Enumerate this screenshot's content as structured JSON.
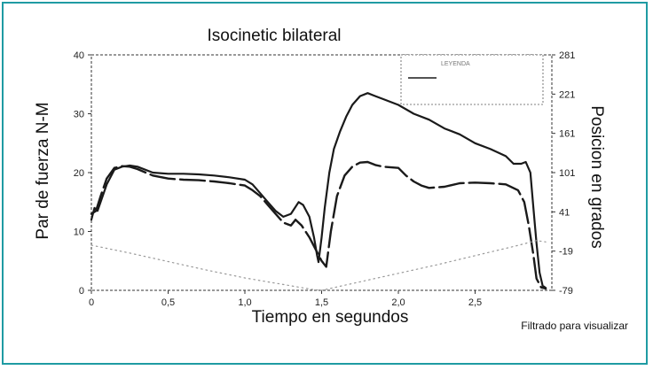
{
  "colors": {
    "frame": "#1f9ba3",
    "line": "#1a1a1a",
    "dotted": "#999999"
  },
  "chart_data": {
    "type": "line",
    "title": "Isocinetic bilateral",
    "xlabel": "Tiempo en segundos",
    "ylabel": "Par de fuerza N-M",
    "y2label": "Posicion en grados",
    "xlim": [
      0,
      3.0
    ],
    "ylim": [
      0,
      40
    ],
    "y2lim": [
      -79,
      281
    ],
    "xticks": [
      "0",
      "0,5",
      "1,0",
      "1,5",
      "2,0",
      "2,5"
    ],
    "yticks": [
      "40",
      "30",
      "20",
      "10",
      "0"
    ],
    "y2ticks": [
      "281",
      "221",
      "161",
      "101",
      "41",
      "-19",
      "-79"
    ],
    "legend": {
      "position": "top-right",
      "title": "LEYENDA",
      "entries": [
        "",
        ""
      ]
    },
    "note": "Filtrado para visualizar",
    "series": [
      {
        "style": "solid",
        "points": [
          [
            0.0,
            12
          ],
          [
            0.02,
            14
          ],
          [
            0.04,
            13.5
          ],
          [
            0.06,
            15
          ],
          [
            0.1,
            18
          ],
          [
            0.15,
            20.5
          ],
          [
            0.2,
            21
          ],
          [
            0.25,
            21.2
          ],
          [
            0.3,
            21
          ],
          [
            0.4,
            20
          ],
          [
            0.5,
            19.8
          ],
          [
            0.6,
            19.8
          ],
          [
            0.7,
            19.7
          ],
          [
            0.8,
            19.5
          ],
          [
            0.9,
            19.2
          ],
          [
            1.0,
            18.8
          ],
          [
            1.05,
            18
          ],
          [
            1.1,
            16.5
          ],
          [
            1.15,
            15
          ],
          [
            1.2,
            13.5
          ],
          [
            1.25,
            12.5
          ],
          [
            1.3,
            13
          ],
          [
            1.35,
            15
          ],
          [
            1.38,
            14.5
          ],
          [
            1.42,
            12.5
          ],
          [
            1.45,
            9
          ],
          [
            1.47,
            6
          ],
          [
            1.48,
            4.8
          ],
          [
            1.5,
            9
          ],
          [
            1.52,
            14
          ],
          [
            1.55,
            20
          ],
          [
            1.58,
            24
          ],
          [
            1.62,
            27
          ],
          [
            1.66,
            29.5
          ],
          [
            1.7,
            31.5
          ],
          [
            1.75,
            33
          ],
          [
            1.8,
            33.5
          ],
          [
            1.85,
            33
          ],
          [
            1.9,
            32.5
          ],
          [
            2.0,
            31.5
          ],
          [
            2.1,
            30
          ],
          [
            2.2,
            29
          ],
          [
            2.3,
            27.5
          ],
          [
            2.4,
            26.5
          ],
          [
            2.5,
            25
          ],
          [
            2.6,
            24
          ],
          [
            2.7,
            22.8
          ],
          [
            2.75,
            21.5
          ],
          [
            2.8,
            21.5
          ],
          [
            2.83,
            21.8
          ],
          [
            2.86,
            20
          ],
          [
            2.88,
            14
          ],
          [
            2.9,
            8
          ],
          [
            2.92,
            3
          ],
          [
            2.94,
            0.8
          ],
          [
            2.96,
            0.4
          ]
        ]
      },
      {
        "style": "dashed",
        "points": [
          [
            0.0,
            13
          ],
          [
            0.03,
            13.5
          ],
          [
            0.06,
            16
          ],
          [
            0.1,
            19
          ],
          [
            0.15,
            20.8
          ],
          [
            0.2,
            21.1
          ],
          [
            0.25,
            21
          ],
          [
            0.3,
            20.6
          ],
          [
            0.4,
            19.5
          ],
          [
            0.5,
            19
          ],
          [
            0.6,
            18.8
          ],
          [
            0.7,
            18.7
          ],
          [
            0.8,
            18.5
          ],
          [
            0.9,
            18.2
          ],
          [
            1.0,
            17.8
          ],
          [
            1.05,
            17
          ],
          [
            1.1,
            16
          ],
          [
            1.15,
            14.5
          ],
          [
            1.2,
            13
          ],
          [
            1.25,
            11.5
          ],
          [
            1.3,
            11
          ],
          [
            1.33,
            12
          ],
          [
            1.37,
            11
          ],
          [
            1.42,
            9
          ],
          [
            1.46,
            7
          ],
          [
            1.5,
            5
          ],
          [
            1.53,
            4
          ],
          [
            1.56,
            10
          ],
          [
            1.6,
            16
          ],
          [
            1.65,
            19.5
          ],
          [
            1.7,
            21
          ],
          [
            1.75,
            21.7
          ],
          [
            1.8,
            21.8
          ],
          [
            1.85,
            21.3
          ],
          [
            1.9,
            21
          ],
          [
            2.0,
            20.8
          ],
          [
            2.05,
            19.5
          ],
          [
            2.1,
            18.5
          ],
          [
            2.15,
            17.8
          ],
          [
            2.2,
            17.4
          ],
          [
            2.3,
            17.6
          ],
          [
            2.4,
            18.2
          ],
          [
            2.5,
            18.3
          ],
          [
            2.6,
            18.2
          ],
          [
            2.7,
            18
          ],
          [
            2.78,
            17
          ],
          [
            2.82,
            15
          ],
          [
            2.85,
            11
          ],
          [
            2.88,
            6
          ],
          [
            2.9,
            2
          ],
          [
            2.93,
            0.5
          ],
          [
            2.96,
            0.3
          ]
        ]
      },
      {
        "style": "dotted",
        "axis": "right",
        "points": [
          [
            0.0,
            -10
          ],
          [
            0.25,
            -22
          ],
          [
            0.5,
            -35
          ],
          [
            0.75,
            -48
          ],
          [
            1.0,
            -60
          ],
          [
            1.25,
            -70
          ],
          [
            1.45,
            -78
          ],
          [
            1.5,
            -79
          ],
          [
            1.75,
            -66
          ],
          [
            2.0,
            -53
          ],
          [
            2.25,
            -40
          ],
          [
            2.5,
            -26
          ],
          [
            2.75,
            -12
          ],
          [
            2.9,
            -3
          ],
          [
            2.96,
            -5
          ]
        ]
      }
    ]
  }
}
